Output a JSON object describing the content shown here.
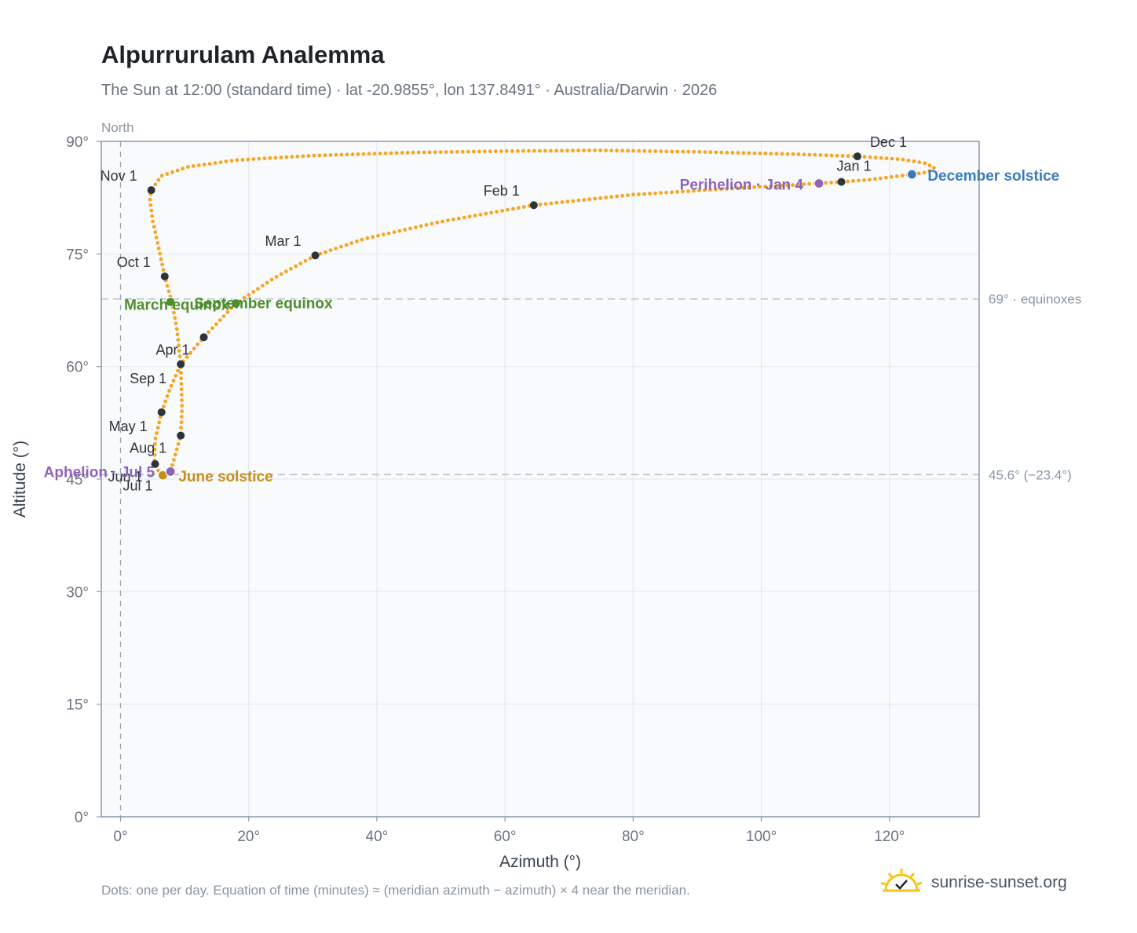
{
  "title": "Alpurrurulam Analemma",
  "subtitle": "The Sun at 12:00 (standard time) · lat -20.9855°, lon 137.8491° · Australia/Darwin · 2026",
  "footnote": "Dots: one per day. Equation of time (minutes) ≈ (meridian azimuth − azimuth) × 4 near the meridian.",
  "brand": {
    "name": "sunrise-sunset.org",
    "icon": "sun-logo-icon"
  },
  "colors": {
    "path": "#f5a623",
    "month_marker": "#2d333b",
    "equinox": "#4e8f2c",
    "june_solstice": "#c8901a",
    "december_solstice": "#3a7bbf",
    "perihelion_aphelion": "#8e63b8",
    "plot_bg": "#f8fafc",
    "grid": "#e5e9ee",
    "frame": "#8b98a8",
    "ref_line": "#b9c1cb"
  },
  "chart_data": {
    "type": "scatter",
    "xlabel": "Azimuth (°)",
    "ylabel": "Altitude (°)",
    "xlim": [
      -3,
      134
    ],
    "ylim": [
      0,
      90
    ],
    "x_ticks": [
      0,
      20,
      40,
      60,
      80,
      100,
      120
    ],
    "x_tick_labels": [
      "0°",
      "20°",
      "40°",
      "60°",
      "80°",
      "100°",
      "120°"
    ],
    "y_ticks": [
      0,
      15,
      30,
      45,
      60,
      75,
      90
    ],
    "y_tick_labels": [
      "0°",
      "15°",
      "30°",
      "45°",
      "60°",
      "75°",
      "90°"
    ],
    "grid": true,
    "north_label": "North",
    "north_azimuth": 0,
    "reference_lines": [
      {
        "y": 69,
        "label": "69° · equinoxes"
      },
      {
        "y": 45.6,
        "label": "45.6° (−23.4°)"
      }
    ],
    "path_anchors": [
      [
        7.3,
        45.6
      ],
      [
        7.8,
        46.0
      ],
      [
        9.4,
        50.8
      ],
      [
        9.6,
        54.5
      ],
      [
        9.4,
        60.3
      ],
      [
        8.8,
        65.0
      ],
      [
        8.0,
        68.6
      ],
      [
        6.9,
        72.0
      ],
      [
        5.9,
        76.0
      ],
      [
        5.0,
        79.5
      ],
      [
        4.6,
        82.3
      ],
      [
        4.8,
        83.5
      ],
      [
        6.4,
        85.4
      ],
      [
        10.5,
        86.6
      ],
      [
        18.0,
        87.5
      ],
      [
        30.0,
        88.1
      ],
      [
        45.0,
        88.5
      ],
      [
        60.0,
        88.7
      ],
      [
        75.0,
        88.8
      ],
      [
        90.0,
        88.6
      ],
      [
        105.0,
        88.3
      ],
      [
        115.0,
        88.0
      ],
      [
        122.0,
        87.6
      ],
      [
        125.5,
        87.1
      ],
      [
        127.0,
        86.5
      ],
      [
        126.0,
        85.9
      ],
      [
        123.5,
        85.6
      ],
      [
        117.0,
        84.9
      ],
      [
        112.5,
        84.6
      ],
      [
        109.0,
        84.4
      ],
      [
        95.0,
        83.7
      ],
      [
        80.0,
        82.9
      ],
      [
        64.5,
        81.5
      ],
      [
        50.0,
        79.3
      ],
      [
        38.0,
        77.0
      ],
      [
        30.4,
        74.8
      ],
      [
        24.0,
        71.8
      ],
      [
        18.0,
        68.4
      ],
      [
        13.0,
        63.9
      ],
      [
        9.4,
        60.3
      ],
      [
        7.7,
        57.0
      ],
      [
        6.4,
        53.9
      ],
      [
        5.4,
        50.2
      ],
      [
        5.3,
        47.0
      ],
      [
        6.2,
        45.7
      ],
      [
        7.3,
        45.6
      ]
    ],
    "month_markers": [
      {
        "label": "Jan 1",
        "az": 112.5,
        "alt": 84.6,
        "anchor": "end",
        "dx": 38,
        "dy": -14
      },
      {
        "label": "Feb 1",
        "az": 64.5,
        "alt": 81.5,
        "anchor": "end",
        "dx": -18,
        "dy": -12
      },
      {
        "label": "Mar 1",
        "az": 30.4,
        "alt": 74.8,
        "anchor": "end",
        "dx": -18,
        "dy": -12
      },
      {
        "label": "Apr 1",
        "az": 13.0,
        "alt": 63.9,
        "anchor": "end",
        "dx": -18,
        "dy": 22
      },
      {
        "label": "May 1",
        "az": 6.4,
        "alt": 53.9,
        "anchor": "end",
        "dx": -18,
        "dy": 24
      },
      {
        "label": "Jun 1",
        "az": 5.4,
        "alt": 47.0,
        "anchor": "end",
        "dx": -16,
        "dy": 22
      },
      {
        "label": "Jul 1",
        "az": 6.5,
        "alt": 45.6,
        "anchor": "end",
        "dx": -12,
        "dy": 20
      },
      {
        "label": "Aug 1",
        "az": 9.4,
        "alt": 50.8,
        "anchor": "end",
        "dx": -18,
        "dy": 22
      },
      {
        "label": "Sep 1",
        "az": 9.4,
        "alt": 60.3,
        "anchor": "end",
        "dx": -18,
        "dy": 24
      },
      {
        "label": "Oct 1",
        "az": 6.9,
        "alt": 72.0,
        "anchor": "end",
        "dx": -18,
        "dy": -12
      },
      {
        "label": "Nov 1",
        "az": 4.8,
        "alt": 83.5,
        "anchor": "end",
        "dx": -18,
        "dy": -12
      },
      {
        "label": "Dec 1",
        "az": 115.0,
        "alt": 88.0,
        "anchor": "start",
        "dx": 16,
        "dy": -12
      }
    ],
    "events": [
      {
        "label": "March equinox",
        "az": 7.8,
        "alt": 68.6,
        "color": "#4e8f2c",
        "anchor": "middle",
        "dx": 8,
        "dy": 10
      },
      {
        "label": "September equinox",
        "az": 18.0,
        "alt": 68.4,
        "color": "#4e8f2c",
        "anchor": "middle",
        "dx": 35,
        "dy": 6
      },
      {
        "label": "June solstice",
        "az": 6.6,
        "alt": 45.5,
        "color": "#c8901a",
        "anchor": "start",
        "dx": 20,
        "dy": 8
      },
      {
        "label": "December solstice",
        "az": 123.5,
        "alt": 85.6,
        "color": "#3a7bbf",
        "anchor": "start",
        "dx": 20,
        "dy": 8
      },
      {
        "label": "Perihelion · Jan 4",
        "az": 109.0,
        "alt": 84.4,
        "color": "#8e63b8",
        "anchor": "end",
        "dx": -20,
        "dy": 8
      },
      {
        "label": "Aphelion · Jul 5",
        "az": 7.8,
        "alt": 46.0,
        "color": "#8e63b8",
        "anchor": "end",
        "dx": -20,
        "dy": 7
      }
    ]
  }
}
